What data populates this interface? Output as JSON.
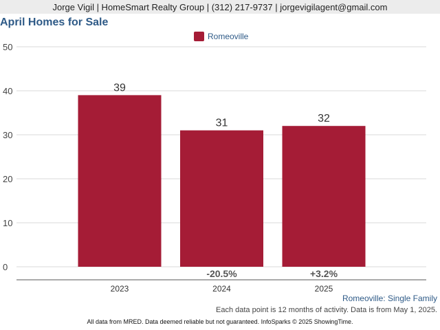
{
  "header": {
    "contact": "Jorge Vigil | HomeSmart Realty Group | (312) 217-9737 | jorgevigilagent@gmail.com"
  },
  "chart_data": {
    "type": "bar",
    "title": "April Homes for Sale",
    "categories": [
      "2023",
      "2024",
      "2025"
    ],
    "series": [
      {
        "name": "Romeoville",
        "values": [
          39,
          31,
          32
        ],
        "color": "#a51c36"
      }
    ],
    "data_labels": [
      "39",
      "31",
      "32"
    ],
    "change_labels": [
      "",
      "-20.5%",
      "+3.2%"
    ],
    "ylim": [
      0,
      50
    ],
    "yticks": [
      0,
      10,
      20,
      30,
      40,
      50
    ],
    "xlabel": "",
    "ylabel": "",
    "grid": true,
    "legend_position": "top-center"
  },
  "subtitle": "Romeoville: Single Family",
  "note": "Each data point is 12 months of activity. Data is from May 1, 2025.",
  "footer": "All data from MRED. Data deemed reliable but not guaranteed. InfoSparks © 2025 ShowingTime."
}
